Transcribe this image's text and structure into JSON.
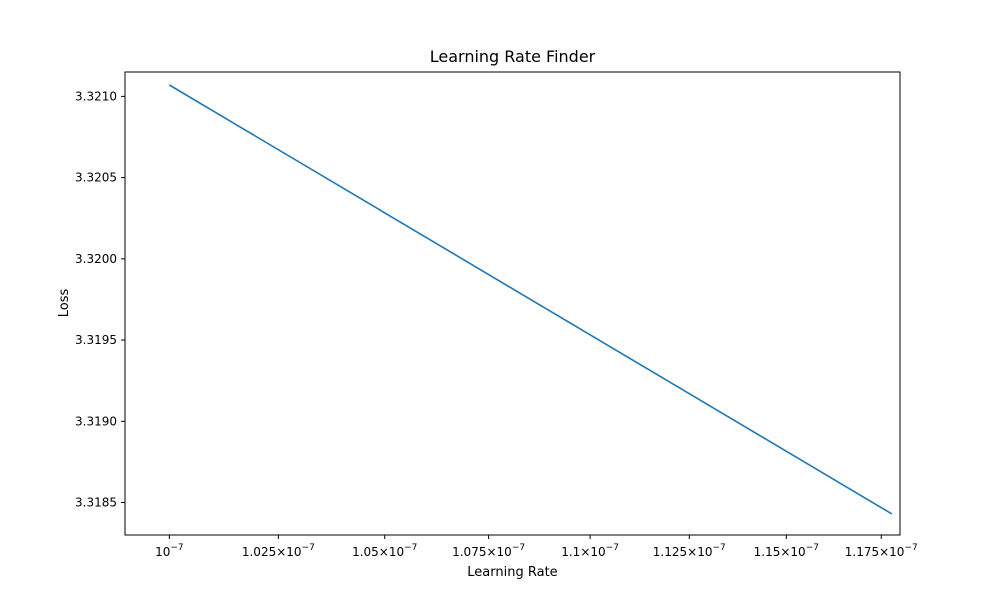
{
  "chart_data": {
    "type": "line",
    "title": "Learning Rate Finder",
    "xlabel": "Learning Rate",
    "ylabel": "Loss",
    "x_scale": "log",
    "xlim": [
      9.9e-08,
      1.18e-07
    ],
    "ylim": [
      3.3183,
      3.32115
    ],
    "x_ticks": [
      {
        "value": 1e-07,
        "mantissa": "10",
        "exponent": "−7",
        "times": false
      },
      {
        "value": 1.025e-07,
        "mantissa": "1.025",
        "exponent": "−7",
        "times": true
      },
      {
        "value": 1.05e-07,
        "mantissa": "1.05",
        "exponent": "−7",
        "times": true
      },
      {
        "value": 1.075e-07,
        "mantissa": "1.075",
        "exponent": "−7",
        "times": true
      },
      {
        "value": 1.1e-07,
        "mantissa": "1.1",
        "exponent": "−7",
        "times": true
      },
      {
        "value": 1.125e-07,
        "mantissa": "1.125",
        "exponent": "−7",
        "times": true
      },
      {
        "value": 1.15e-07,
        "mantissa": "1.15",
        "exponent": "−7",
        "times": true
      },
      {
        "value": 1.175e-07,
        "mantissa": "1.175",
        "exponent": "−7",
        "times": true
      }
    ],
    "y_ticks": [
      {
        "value": 3.3185,
        "label": "3.3185"
      },
      {
        "value": 3.319,
        "label": "3.3190"
      },
      {
        "value": 3.3195,
        "label": "3.3195"
      },
      {
        "value": 3.32,
        "label": "3.3200"
      },
      {
        "value": 3.3205,
        "label": "3.3205"
      },
      {
        "value": 3.321,
        "label": "3.3210"
      }
    ],
    "series": [
      {
        "color": "#1f77b4",
        "x": [
          1e-07,
          1.1778e-07
        ],
        "y": [
          3.32107,
          3.31843
        ]
      }
    ],
    "grid": false,
    "legend": "none"
  }
}
